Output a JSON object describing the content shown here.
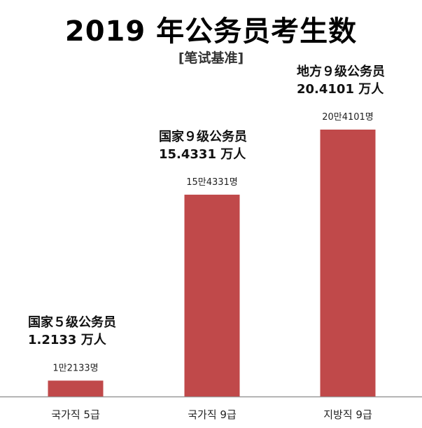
{
  "title": "2019 年公务员考生数",
  "subtitle": "[笔试基准]",
  "chart_data": {
    "type": "bar",
    "title": "2019 年公务员考生数",
    "subtitle": "[笔试基准]",
    "categories": [
      "국가직 5급",
      "국가직 9급",
      "지방직 9급"
    ],
    "values": [
      12133,
      154331,
      204101
    ],
    "data_labels": [
      "1만2133명",
      "15만4331명",
      "20만4101명"
    ],
    "annotations": [
      {
        "line1": "国家５级公务员",
        "line2": "1.2133 万人"
      },
      {
        "line1": "国家９级公务员",
        "line2": "15.4331 万人"
      },
      {
        "line1": "地方９级公务员",
        "line2": "20.4101 万人"
      }
    ],
    "bar_color": "#c0494a",
    "axis_color": "#999999",
    "ylim": [
      0,
      204101
    ],
    "grid": false,
    "legend": "none"
  }
}
